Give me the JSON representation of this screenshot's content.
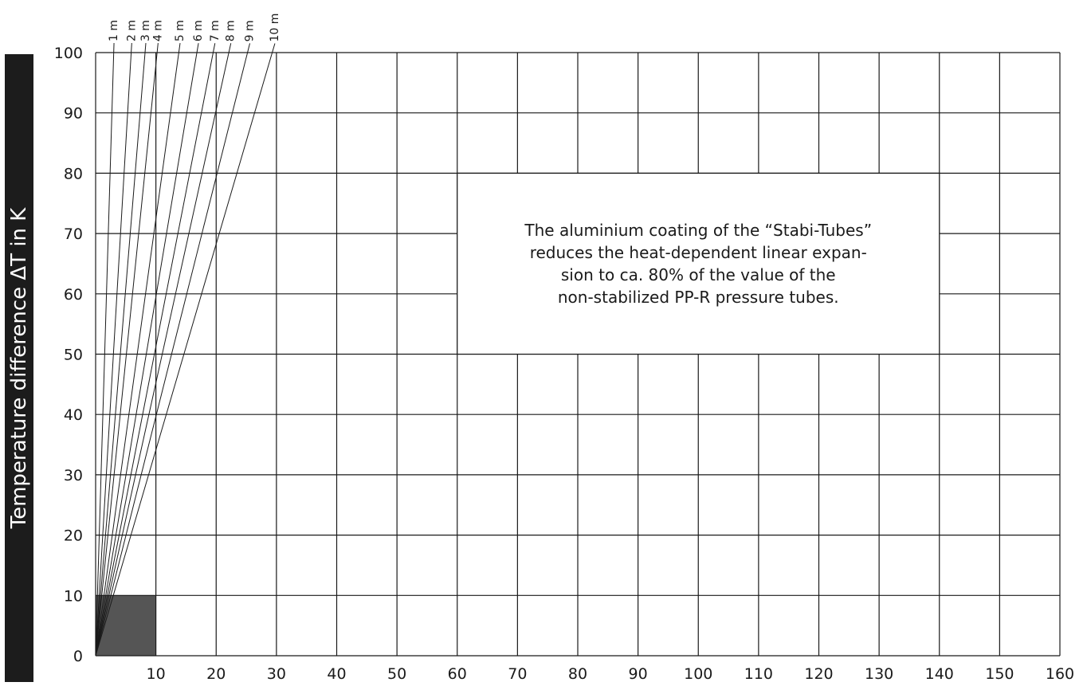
{
  "chart_data": {
    "type": "line",
    "ylabel": "Temperature difference ΔT in K",
    "xlim": [
      0,
      160
    ],
    "ylim": [
      0,
      100
    ],
    "x_ticks": [
      "10",
      "20",
      "30",
      "40",
      "50",
      "60",
      "70",
      "80",
      "90",
      "100",
      "110",
      "120",
      "130",
      "140",
      "150",
      "160"
    ],
    "y_ticks": [
      "0",
      "10",
      "20",
      "30",
      "40",
      "50",
      "60",
      "70",
      "80",
      "90",
      "100"
    ],
    "grid": true,
    "series": [
      {
        "name": "1 m",
        "points": [
          [
            0,
            0
          ],
          [
            3.0,
            100
          ]
        ]
      },
      {
        "name": "2 m",
        "points": [
          [
            0,
            0
          ],
          [
            5.9,
            100
          ]
        ]
      },
      {
        "name": "3 m",
        "points": [
          [
            0,
            0
          ],
          [
            8.2,
            100
          ]
        ]
      },
      {
        "name": "4 m",
        "points": [
          [
            0,
            0
          ],
          [
            10.2,
            100
          ]
        ]
      },
      {
        "name": "5 m",
        "points": [
          [
            0,
            0
          ],
          [
            13.8,
            100
          ]
        ]
      },
      {
        "name": "6 m",
        "points": [
          [
            0,
            0
          ],
          [
            16.8,
            100
          ]
        ]
      },
      {
        "name": "7 m",
        "points": [
          [
            0,
            0
          ],
          [
            19.5,
            100
          ]
        ]
      },
      {
        "name": "8 m",
        "points": [
          [
            0,
            0
          ],
          [
            22.1,
            100
          ]
        ]
      },
      {
        "name": "9 m",
        "points": [
          [
            0,
            0
          ],
          [
            25.2,
            100
          ]
        ]
      },
      {
        "name": "10 m",
        "points": [
          [
            0,
            0
          ],
          [
            29.3,
            100
          ]
        ]
      }
    ],
    "shaded_region": {
      "x": [
        0,
        10
      ],
      "y": [
        0,
        10
      ],
      "color": "#555555"
    },
    "annotation": {
      "lines": [
        "The aluminium coating of the “Stabi-Tubes”",
        "reduces the heat-dependent linear expan-",
        "sion to ca. 80% of the value of the",
        "non-stabilized PP-R pressure tubes."
      ],
      "x": [
        60,
        140
      ],
      "y": [
        50,
        80
      ]
    }
  }
}
